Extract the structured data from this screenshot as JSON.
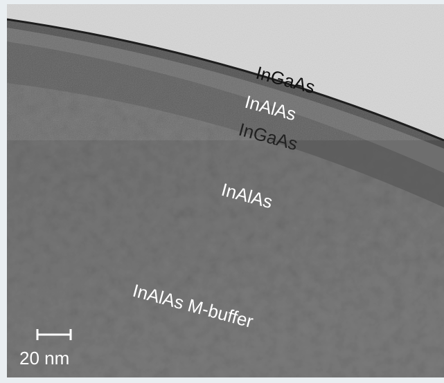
{
  "image": {
    "labels": [
      "InGaAs",
      "InAlAs",
      "InGaAs",
      "InAlAs",
      "InAlAs M-buffer"
    ],
    "scale_bar": "20 nm"
  }
}
